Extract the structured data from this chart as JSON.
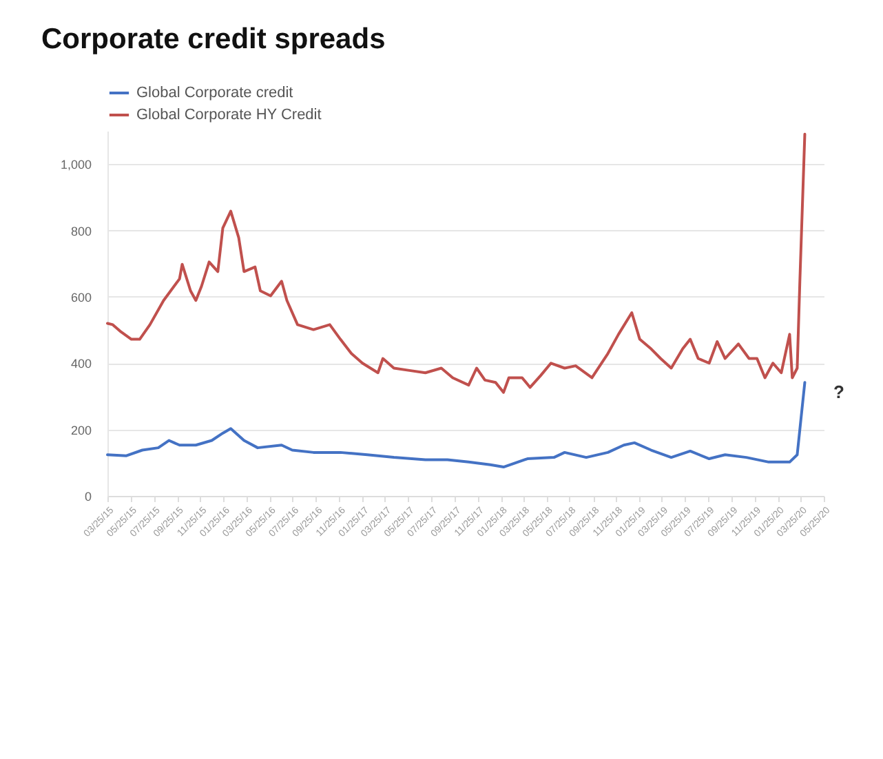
{
  "chart_data": {
    "type": "line",
    "title": "Corporate credit spreads",
    "xlim": [
      "2015-03-25",
      "2020-05-25"
    ],
    "xticks": [
      {
        "value": "2015-03-25",
        "label": "03/25/15"
      },
      {
        "value": "2015-05-25",
        "label": "05/25/15"
      },
      {
        "value": "2015-07-25",
        "label": "07/25/15"
      },
      {
        "value": "2015-09-25",
        "label": "09/25/15"
      },
      {
        "value": "2015-11-25",
        "label": "11/25/15"
      },
      {
        "value": "2016-01-25",
        "label": "01/25/16"
      },
      {
        "value": "2016-03-25",
        "label": "03/25/16"
      },
      {
        "value": "2016-05-25",
        "label": "05/25/16"
      },
      {
        "value": "2016-07-25",
        "label": "07/25/16"
      },
      {
        "value": "2016-09-25",
        "label": "09/25/16"
      },
      {
        "value": "2016-11-25",
        "label": "11/25/16"
      },
      {
        "value": "2017-01-25",
        "label": "01/25/17"
      },
      {
        "value": "2017-03-25",
        "label": "03/25/17"
      },
      {
        "value": "2017-05-25",
        "label": "05/25/17"
      },
      {
        "value": "2017-07-25",
        "label": "07/25/17"
      },
      {
        "value": "2017-09-25",
        "label": "09/25/17"
      },
      {
        "value": "2017-11-25",
        "label": "11/25/17"
      },
      {
        "value": "2018-01-25",
        "label": "01/25/18"
      },
      {
        "value": "2018-03-25",
        "label": "03/25/18"
      },
      {
        "value": "2018-05-25",
        "label": "05/25/18"
      },
      {
        "value": "2018-07-25",
        "label": "07/25/18"
      },
      {
        "value": "2018-09-25",
        "label": "09/25/18"
      },
      {
        "value": "2018-11-25",
        "label": "11/25/18"
      },
      {
        "value": "2019-01-25",
        "label": "01/25/19"
      },
      {
        "value": "2019-03-25",
        "label": "03/25/19"
      },
      {
        "value": "2019-05-25",
        "label": "05/25/19"
      },
      {
        "value": "2019-07-25",
        "label": "07/25/19"
      },
      {
        "value": "2019-09-25",
        "label": "09/25/19"
      },
      {
        "value": "2019-11-25",
        "label": "11/25/19"
      },
      {
        "value": "2020-01-25",
        "label": "01/25/20"
      },
      {
        "value": "2020-03-25",
        "label": "03/25/20"
      },
      {
        "value": "2020-05-25",
        "label": "05/25/20"
      }
    ],
    "ylim": [
      0,
      1100
    ],
    "yticks": [
      0,
      200,
      400,
      600,
      800,
      {
        "value": 1000,
        "label": "1,000"
      }
    ],
    "grid": "y",
    "legend": "top",
    "annotations": [
      "?"
    ],
    "series": [
      {
        "name": "Global Corporate credit",
        "color": "#4472c4",
        "x": [
          "2015-03-25",
          "2015-05-14",
          "2015-06-25",
          "2015-08-06",
          "2015-09-03",
          "2015-10-01",
          "2015-11-13",
          "2015-12-25",
          "2016-01-23",
          "2016-02-13",
          "2016-03-19",
          "2016-04-24",
          "2016-06-26",
          "2016-07-24",
          "2016-09-18",
          "2016-11-28",
          "2017-02-07",
          "2017-04-18",
          "2017-07-10",
          "2017-09-06",
          "2017-11-01",
          "2017-12-28",
          "2018-02-01",
          "2018-04-05",
          "2018-06-14",
          "2018-07-12",
          "2018-09-07",
          "2018-11-03",
          "2018-12-15",
          "2019-01-12",
          "2019-02-25",
          "2019-04-19",
          "2019-06-08",
          "2019-07-28",
          "2019-09-08",
          "2019-11-03",
          "2020-01-01",
          "2020-02-25",
          "2020-03-16",
          "2020-04-05"
        ],
        "values": [
          124,
          121,
          138,
          145,
          167,
          153,
          153,
          167,
          189,
          203,
          167,
          145,
          153,
          138,
          131,
          131,
          124,
          116,
          109,
          109,
          102,
          94,
          87,
          112,
          116,
          131,
          116,
          131,
          153,
          160,
          138,
          116,
          135,
          112,
          124,
          116,
          102,
          102,
          124,
          342
        ]
      },
      {
        "name": "Global Corporate HY Credit",
        "color": "#c0504d",
        "x": [
          "2015-03-25",
          "2015-04-08",
          "2015-04-30",
          "2015-05-27",
          "2015-06-18",
          "2015-07-15",
          "2015-08-20",
          "2015-10-01",
          "2015-10-08",
          "2015-10-30",
          "2015-11-13",
          "2015-11-28",
          "2015-12-18",
          "2016-01-10",
          "2016-01-23",
          "2016-02-13",
          "2016-03-05",
          "2016-03-19",
          "2016-04-17",
          "2016-05-01",
          "2016-05-28",
          "2016-06-26",
          "2016-07-10",
          "2016-08-07",
          "2016-09-18",
          "2016-10-31",
          "2016-11-28",
          "2016-12-27",
          "2017-01-25",
          "2017-03-07",
          "2017-03-20",
          "2017-04-18",
          "2017-05-29",
          "2017-07-10",
          "2017-08-21",
          "2017-09-20",
          "2017-11-01",
          "2017-11-22",
          "2017-12-14",
          "2018-01-11",
          "2018-02-01",
          "2018-02-15",
          "2018-03-22",
          "2018-04-12",
          "2018-05-10",
          "2018-06-06",
          "2018-07-12",
          "2018-08-10",
          "2018-09-22",
          "2018-11-03",
          "2018-12-01",
          "2019-01-05",
          "2019-01-26",
          "2019-02-25",
          "2019-03-22",
          "2019-04-19",
          "2019-05-19",
          "2019-06-08",
          "2019-06-29",
          "2019-07-28",
          "2019-08-18",
          "2019-09-08",
          "2019-10-13",
          "2019-11-10",
          "2019-12-01",
          "2019-12-22",
          "2020-01-12",
          "2020-02-03",
          "2020-02-25",
          "2020-03-03",
          "2020-03-16",
          "2020-03-23",
          "2020-04-05"
        ],
        "values": [
          520,
          516,
          494,
          472,
          472,
          516,
          589,
          654,
          698,
          618,
          589,
          632,
          705,
          676,
          807,
          858,
          778,
          676,
          690,
          618,
          603,
          647,
          589,
          516,
          501,
          516,
          472,
          429,
          400,
          371,
          414,
          385,
          378,
          371,
          385,
          356,
          334,
          385,
          349,
          342,
          312,
          356,
          356,
          327,
          363,
          400,
          385,
          392,
          356,
          429,
          487,
          552,
          472,
          443,
          414,
          385,
          443,
          472,
          414,
          400,
          465,
          414,
          458,
          414,
          414,
          356,
          400,
          371,
          487,
          356,
          385,
          647,
          1090
        ]
      }
    ]
  }
}
